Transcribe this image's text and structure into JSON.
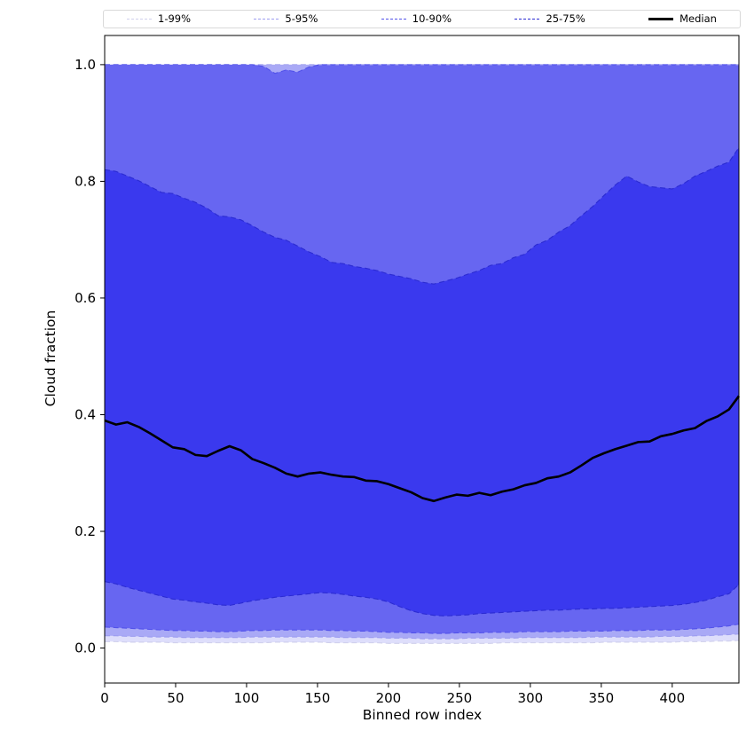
{
  "chart_data": {
    "type": "area",
    "title": "",
    "xlabel": "Binned row index",
    "ylabel": "Cloud fraction",
    "xlim": [
      0,
      447
    ],
    "ylim": [
      -0.06,
      1.05
    ],
    "grid": false,
    "legend_position": "top-expanded",
    "xticks": [
      0,
      50,
      100,
      150,
      200,
      250,
      300,
      350,
      400
    ],
    "xtick_labels": [
      "0",
      "50",
      "100",
      "150",
      "200",
      "250",
      "300",
      "350",
      "400"
    ],
    "yticks": [
      0.0,
      0.2,
      0.4,
      0.6,
      0.8,
      1.0
    ],
    "ytick_labels": [
      "0.0",
      "0.2",
      "0.4",
      "0.6",
      "0.8",
      "1.0"
    ],
    "x": [
      0,
      8,
      16,
      24,
      32,
      40,
      48,
      56,
      64,
      72,
      80,
      88,
      96,
      104,
      112,
      120,
      128,
      136,
      144,
      152,
      160,
      168,
      176,
      184,
      192,
      200,
      208,
      216,
      224,
      232,
      240,
      248,
      256,
      264,
      272,
      280,
      288,
      296,
      304,
      312,
      320,
      328,
      336,
      344,
      352,
      360,
      368,
      376,
      384,
      392,
      400,
      408,
      416,
      424,
      432,
      440,
      447
    ],
    "bands": [
      {
        "label": "1-99%",
        "fill": "#dedefb",
        "line": "#cfcfec",
        "lower": [
          0.011,
          0.011,
          0.01,
          0.01,
          0.01,
          0.01,
          0.009,
          0.009,
          0.009,
          0.009,
          0.009,
          0.009,
          0.009,
          0.009,
          0.009,
          0.01,
          0.01,
          0.01,
          0.01,
          0.01,
          0.009,
          0.009,
          0.009,
          0.009,
          0.009,
          0.008,
          0.008,
          0.008,
          0.008,
          0.008,
          0.008,
          0.008,
          0.008,
          0.008,
          0.008,
          0.009,
          0.009,
          0.009,
          0.009,
          0.009,
          0.009,
          0.009,
          0.009,
          0.009,
          0.01,
          0.01,
          0.01,
          0.01,
          0.01,
          0.01,
          0.01,
          0.011,
          0.011,
          0.011,
          0.012,
          0.012,
          0.013
        ],
        "upper": 1.0
      },
      {
        "label": "5-95%",
        "fill": "#a9a9f6",
        "line": "#9d9df0",
        "lower": [
          0.021,
          0.021,
          0.02,
          0.02,
          0.019,
          0.019,
          0.019,
          0.018,
          0.018,
          0.018,
          0.018,
          0.018,
          0.018,
          0.019,
          0.019,
          0.019,
          0.019,
          0.019,
          0.019,
          0.019,
          0.019,
          0.018,
          0.018,
          0.018,
          0.018,
          0.017,
          0.017,
          0.017,
          0.016,
          0.016,
          0.016,
          0.016,
          0.017,
          0.017,
          0.017,
          0.017,
          0.017,
          0.018,
          0.018,
          0.018,
          0.018,
          0.018,
          0.018,
          0.019,
          0.019,
          0.019,
          0.019,
          0.019,
          0.019,
          0.02,
          0.02,
          0.02,
          0.021,
          0.021,
          0.022,
          0.023,
          0.024
        ],
        "upper": 1.0
      },
      {
        "label": "10-90%",
        "fill": "#6766f1",
        "line": "#5252ea",
        "lower": [
          0.036,
          0.035,
          0.034,
          0.033,
          0.032,
          0.031,
          0.03,
          0.03,
          0.029,
          0.029,
          0.028,
          0.028,
          0.029,
          0.03,
          0.03,
          0.031,
          0.031,
          0.031,
          0.031,
          0.031,
          0.03,
          0.03,
          0.029,
          0.029,
          0.028,
          0.027,
          0.027,
          0.026,
          0.026,
          0.025,
          0.025,
          0.026,
          0.026,
          0.026,
          0.027,
          0.027,
          0.027,
          0.028,
          0.028,
          0.028,
          0.028,
          0.029,
          0.029,
          0.029,
          0.029,
          0.03,
          0.03,
          0.03,
          0.031,
          0.031,
          0.031,
          0.032,
          0.033,
          0.034,
          0.036,
          0.038,
          0.041
        ],
        "upper": [
          1.0,
          1.0,
          1.0,
          1.0,
          1.0,
          1.0,
          1.0,
          1.0,
          1.0,
          1.0,
          1.0,
          1.0,
          1.0,
          1.0,
          0.997,
          0.985,
          0.991,
          0.987,
          0.996,
          1.0,
          1.0,
          1.0,
          1.0,
          1.0,
          1.0,
          1.0,
          1.0,
          1.0,
          1.0,
          1.0,
          1.0,
          1.0,
          1.0,
          1.0,
          1.0,
          1.0,
          1.0,
          1.0,
          1.0,
          1.0,
          1.0,
          1.0,
          1.0,
          1.0,
          1.0,
          1.0,
          1.0,
          1.0,
          1.0,
          1.0,
          1.0,
          1.0,
          1.0,
          1.0,
          1.0,
          1.0,
          1.0
        ]
      },
      {
        "label": "25-75%",
        "fill": "#3a39ee",
        "line": "#2b2bd2",
        "lower": [
          0.114,
          0.11,
          0.104,
          0.099,
          0.094,
          0.089,
          0.084,
          0.082,
          0.079,
          0.077,
          0.074,
          0.073,
          0.077,
          0.081,
          0.084,
          0.087,
          0.089,
          0.091,
          0.093,
          0.095,
          0.094,
          0.092,
          0.089,
          0.087,
          0.084,
          0.079,
          0.071,
          0.064,
          0.059,
          0.056,
          0.055,
          0.056,
          0.057,
          0.059,
          0.06,
          0.061,
          0.062,
          0.063,
          0.064,
          0.065,
          0.065,
          0.066,
          0.067,
          0.067,
          0.068,
          0.068,
          0.069,
          0.07,
          0.071,
          0.072,
          0.073,
          0.075,
          0.078,
          0.082,
          0.088,
          0.093,
          0.109
        ],
        "upper": [
          0.82,
          0.817,
          0.809,
          0.801,
          0.791,
          0.781,
          0.779,
          0.771,
          0.764,
          0.754,
          0.741,
          0.739,
          0.734,
          0.724,
          0.713,
          0.704,
          0.699,
          0.689,
          0.679,
          0.671,
          0.661,
          0.659,
          0.654,
          0.651,
          0.647,
          0.641,
          0.637,
          0.633,
          0.627,
          0.624,
          0.629,
          0.634,
          0.641,
          0.647,
          0.656,
          0.659,
          0.669,
          0.675,
          0.691,
          0.699,
          0.713,
          0.724,
          0.741,
          0.757,
          0.776,
          0.794,
          0.809,
          0.799,
          0.791,
          0.789,
          0.787,
          0.796,
          0.809,
          0.817,
          0.826,
          0.833,
          0.858
        ]
      }
    ],
    "median": {
      "label": "Median",
      "color": "#000000",
      "values": [
        0.39,
        0.383,
        0.387,
        0.379,
        0.368,
        0.356,
        0.344,
        0.341,
        0.331,
        0.329,
        0.338,
        0.346,
        0.339,
        0.324,
        0.317,
        0.309,
        0.299,
        0.294,
        0.299,
        0.301,
        0.297,
        0.294,
        0.293,
        0.287,
        0.286,
        0.281,
        0.274,
        0.267,
        0.257,
        0.252,
        0.258,
        0.263,
        0.261,
        0.266,
        0.262,
        0.268,
        0.272,
        0.279,
        0.283,
        0.291,
        0.294,
        0.301,
        0.313,
        0.326,
        0.334,
        0.341,
        0.347,
        0.353,
        0.354,
        0.363,
        0.367,
        0.373,
        0.377,
        0.389,
        0.397,
        0.409,
        0.432
      ]
    }
  },
  "colors": {
    "background": "#ffffff",
    "axis": "#000000",
    "legend_border": "#d9d9d9"
  }
}
